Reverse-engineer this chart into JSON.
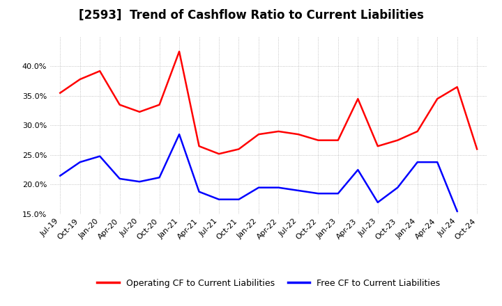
{
  "title": "[2593]  Trend of Cashflow Ratio to Current Liabilities",
  "x_labels": [
    "Jul-19",
    "Oct-19",
    "Jan-20",
    "Apr-20",
    "Jul-20",
    "Oct-20",
    "Jan-21",
    "Apr-21",
    "Jul-21",
    "Oct-21",
    "Jan-22",
    "Apr-22",
    "Jul-22",
    "Oct-22",
    "Jan-23",
    "Apr-23",
    "Jul-23",
    "Oct-23",
    "Jan-24",
    "Apr-24",
    "Jul-24",
    "Oct-24"
  ],
  "operating_cf": [
    35.5,
    37.8,
    39.2,
    33.5,
    32.3,
    33.5,
    42.5,
    26.5,
    25.2,
    26.0,
    28.5,
    29.0,
    28.5,
    27.5,
    27.5,
    34.5,
    26.5,
    27.5,
    29.0,
    34.5,
    36.5,
    26.0
  ],
  "free_cf": [
    21.5,
    23.8,
    24.8,
    21.0,
    20.5,
    21.2,
    28.5,
    18.8,
    17.5,
    17.5,
    19.5,
    19.5,
    19.0,
    18.5,
    18.5,
    22.5,
    17.0,
    19.5,
    23.8,
    23.8,
    15.5,
    null
  ],
  "operating_color": "#FF0000",
  "free_color": "#0000FF",
  "ylim_min": 15.0,
  "ylim_max": 45.0,
  "yticks": [
    15.0,
    20.0,
    25.0,
    30.0,
    35.0,
    40.0
  ],
  "background_color": "#FFFFFF",
  "grid_color": "#AAAAAA",
  "legend_op": "Operating CF to Current Liabilities",
  "legend_free": "Free CF to Current Liabilities",
  "title_fontsize": 12,
  "tick_fontsize": 8,
  "legend_fontsize": 9,
  "line_width": 1.8
}
